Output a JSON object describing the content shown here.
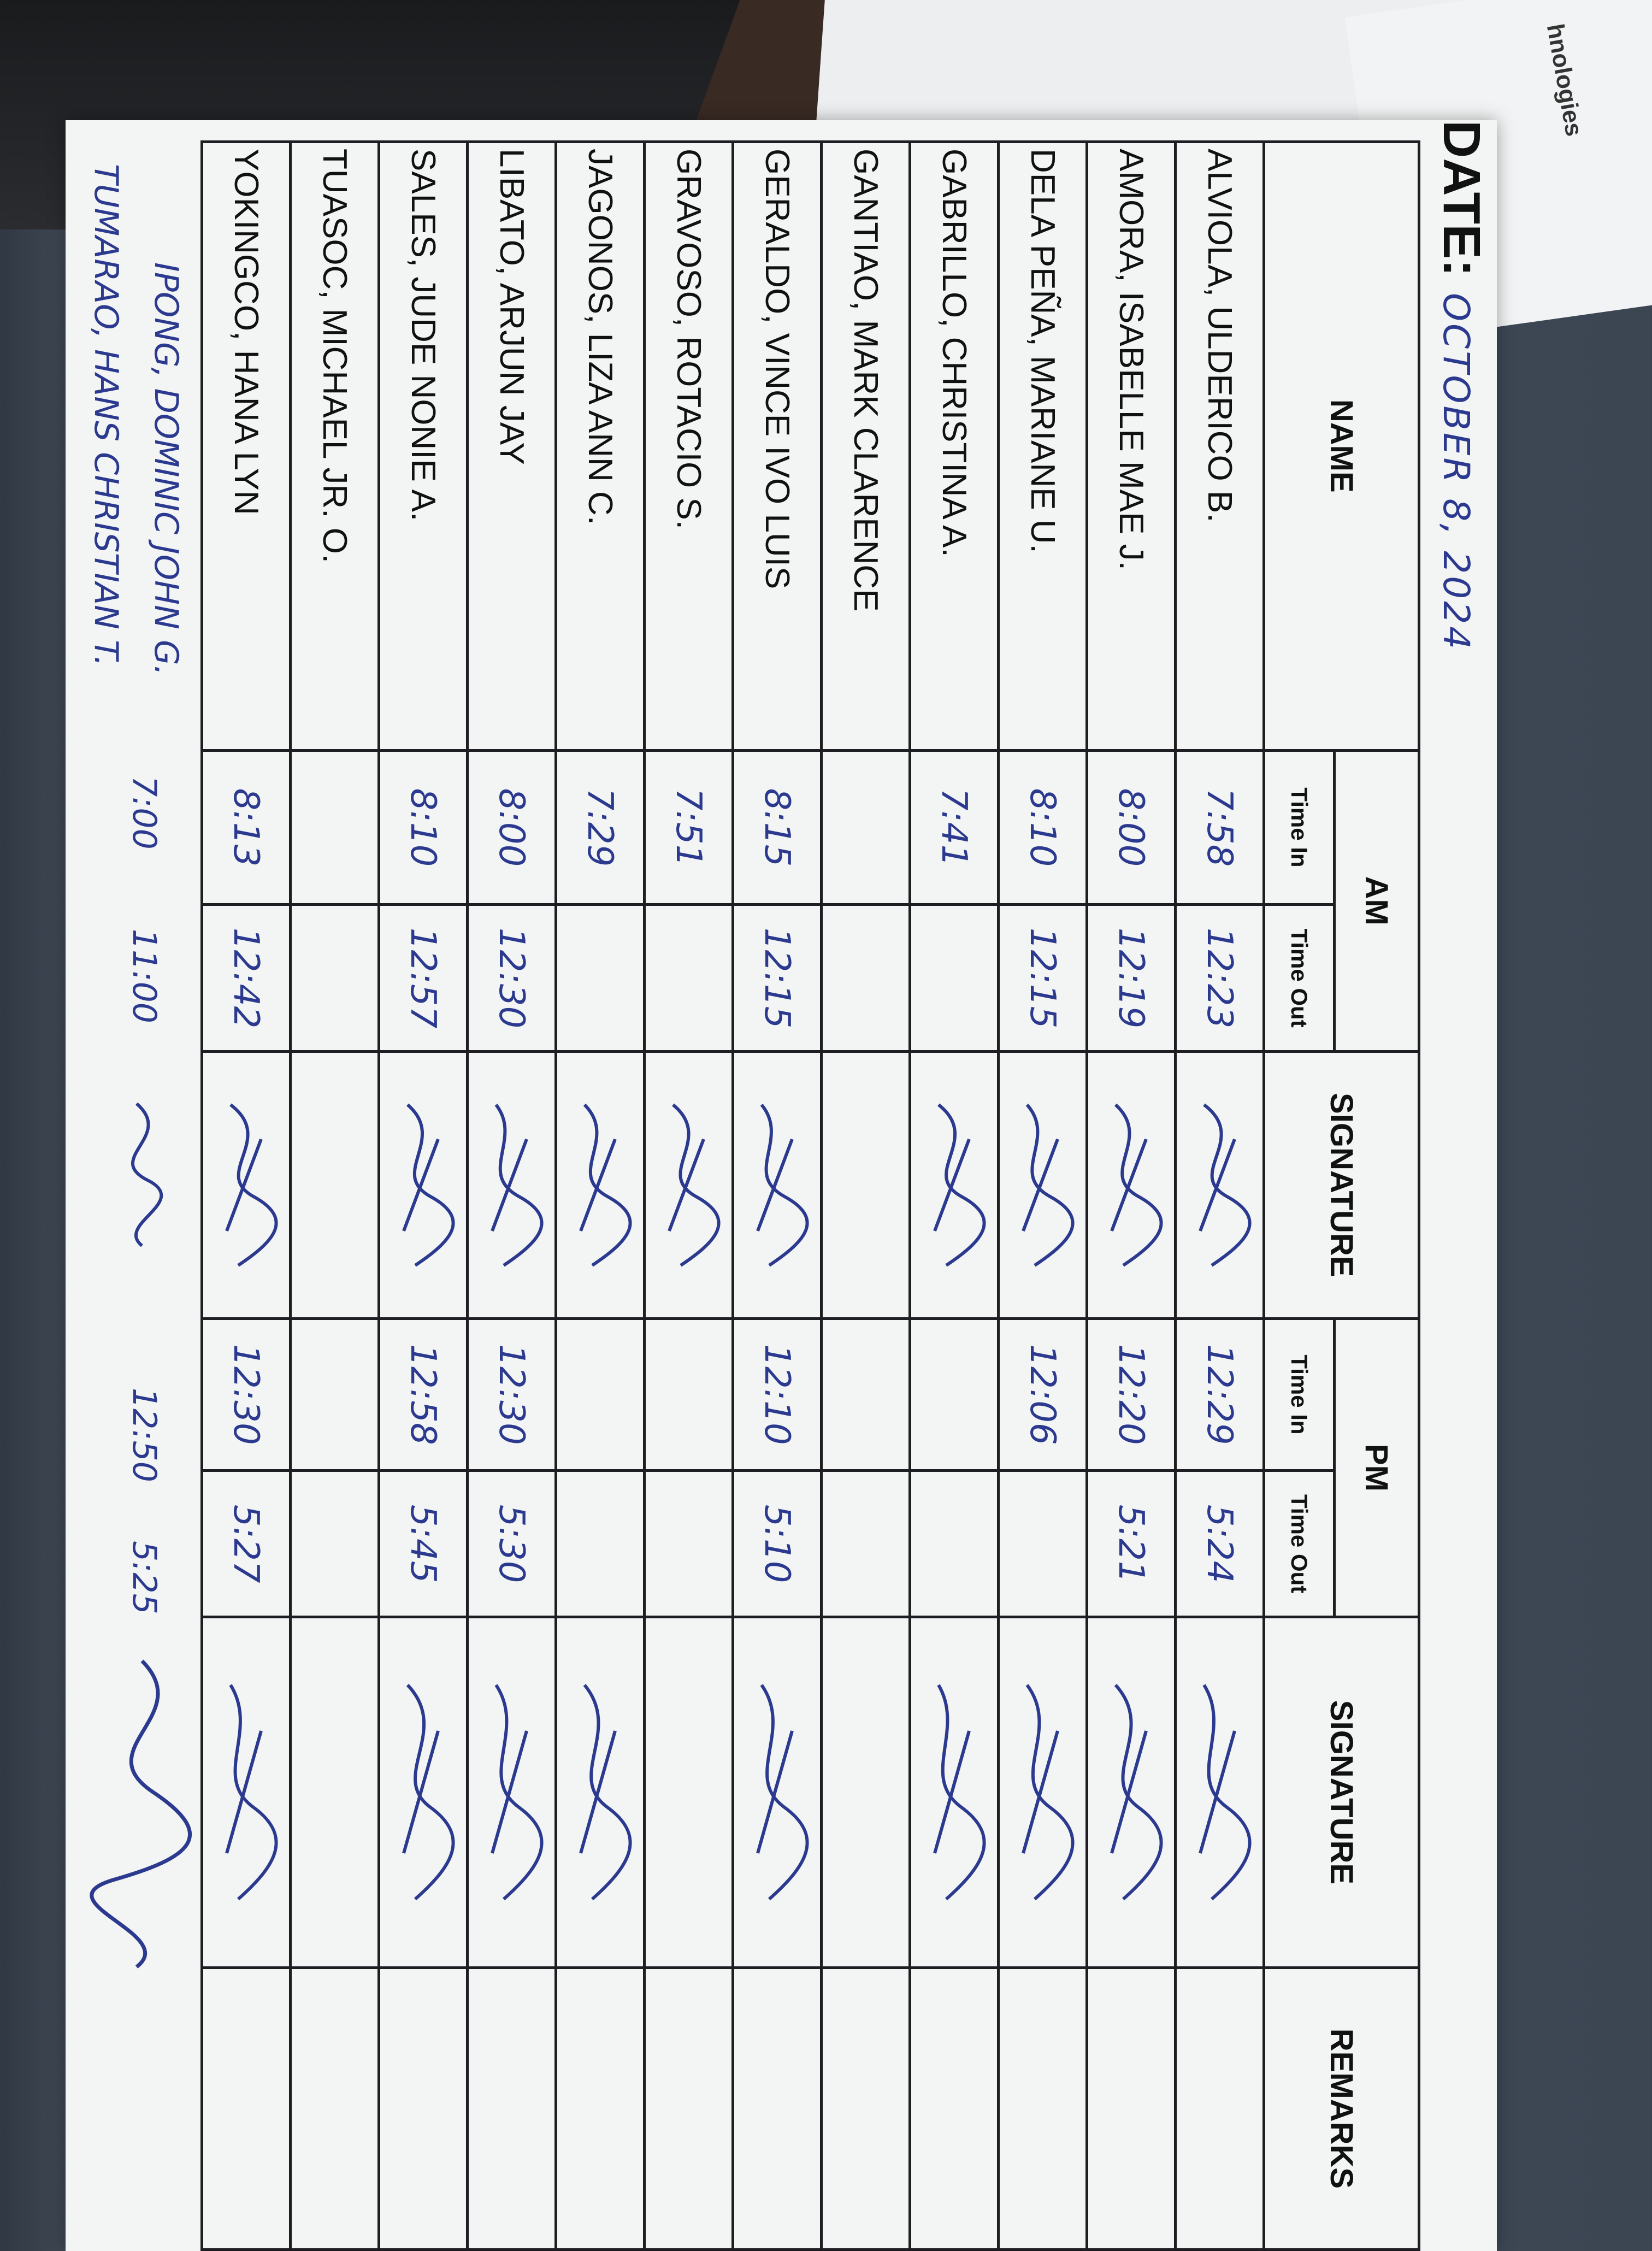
{
  "background": {
    "paper_text": "hnologies"
  },
  "sheet": {
    "date_label": "DATE:",
    "date_value": "OCTOBER 8, 2024",
    "headers": {
      "name": "NAME",
      "am": "AM",
      "pm": "PM",
      "time_in": "Time In",
      "time_out": "Time Out",
      "signature": "SIGNATURE",
      "remarks": "REMARKS"
    },
    "rows": [
      {
        "name": "ALVIOLA, ULDERICO B.",
        "am_in": "7:58",
        "am_out": "12:23",
        "am_signed": true,
        "pm_in": "12:29",
        "pm_out": "5:24",
        "pm_signed": true
      },
      {
        "name": "AMORA, ISABELLE MAE J.",
        "am_in": "8:00",
        "am_out": "12:19",
        "am_signed": true,
        "pm_in": "12:20",
        "pm_out": "5:21",
        "pm_signed": true
      },
      {
        "name": "DELA PEÑA, MARIANE U.",
        "am_in": "8:10",
        "am_out": "12:15",
        "am_signed": true,
        "pm_in": "12:06",
        "pm_out": "",
        "pm_signed": true
      },
      {
        "name": "GABRILLO, CHRISTINA A.",
        "am_in": "7:41",
        "am_out": "",
        "am_signed": true,
        "pm_in": "",
        "pm_out": "",
        "pm_signed": true
      },
      {
        "name": "GANTIAO, MARK CLARENCE",
        "am_in": "",
        "am_out": "",
        "am_signed": false,
        "pm_in": "",
        "pm_out": "",
        "pm_signed": false
      },
      {
        "name": "GERALDO, VINCE IVO LUIS",
        "am_in": "8:15",
        "am_out": "12:15",
        "am_signed": true,
        "pm_in": "12:10",
        "pm_out": "5:10",
        "pm_signed": true
      },
      {
        "name": "GRAVOSO, ROTACIO S.",
        "am_in": "7:51",
        "am_out": "",
        "am_signed": true,
        "pm_in": "",
        "pm_out": "",
        "pm_signed": false
      },
      {
        "name": "JAGONOS, LIZA ANN C.",
        "am_in": "7:29",
        "am_out": "",
        "am_signed": true,
        "pm_in": "",
        "pm_out": "",
        "pm_signed": true
      },
      {
        "name": "LIBATO, ARJUN JAY",
        "am_in": "8:00",
        "am_out": "12:30",
        "am_signed": true,
        "pm_in": "12:30",
        "pm_out": "5:30",
        "pm_signed": true
      },
      {
        "name": "SALES, JUDE NONIE A.",
        "am_in": "8:10",
        "am_out": "12:57",
        "am_signed": true,
        "pm_in": "12:58",
        "pm_out": "5:45",
        "pm_signed": true
      },
      {
        "name": "TUASOC, MICHAEL JR. O.",
        "am_in": "",
        "am_out": "",
        "am_signed": false,
        "pm_in": "",
        "pm_out": "",
        "pm_signed": false
      },
      {
        "name": "YOKINGCO, HANA LYN",
        "am_in": "8:13",
        "am_out": "12:42",
        "am_signed": true,
        "pm_in": "12:30",
        "pm_out": "5:27",
        "pm_signed": true
      }
    ],
    "handwritten": {
      "name_1": "IPONG, DOMINIC JOHN G.",
      "name_2": "TUMARAO, HANS CHRISTIAN T.",
      "am_in": "7:00",
      "am_out": "11:00",
      "pm_in": "12:50",
      "pm_out": "5:25"
    },
    "ink_color": "#2b3a8f"
  }
}
